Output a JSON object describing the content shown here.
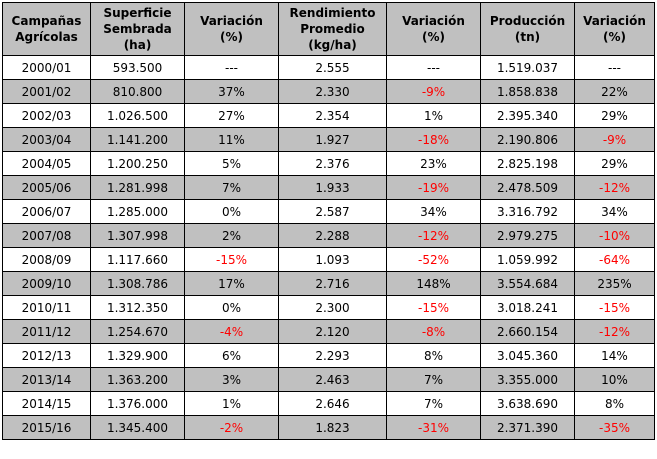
{
  "headers": [
    [
      "Campañas",
      "Agrícolas"
    ],
    [
      "Superficie",
      "Sembrada",
      "(ha)"
    ],
    [
      "Variación",
      "(%)"
    ],
    [
      "Rendimiento",
      "Promedio",
      "(kg/ha)"
    ],
    [
      "Variación",
      "(%)"
    ],
    [
      "Producción",
      "(tn)"
    ],
    [
      "Variación",
      "(%)"
    ]
  ],
  "rows": [
    [
      "2000/01",
      "593.500",
      "---",
      "2.555",
      "---",
      "1.519.037",
      "---"
    ],
    [
      "2001/02",
      "810.800",
      "37%",
      "2.330",
      "-9%",
      "1.858.838",
      "22%"
    ],
    [
      "2002/03",
      "1.026.500",
      "27%",
      "2.354",
      "1%",
      "2.395.340",
      "29%"
    ],
    [
      "2003/04",
      "1.141.200",
      "11%",
      "1.927",
      "-18%",
      "2.190.806",
      "-9%"
    ],
    [
      "2004/05",
      "1.200.250",
      "5%",
      "2.376",
      "23%",
      "2.825.198",
      "29%"
    ],
    [
      "2005/06",
      "1.281.998",
      "7%",
      "1.933",
      "-19%",
      "2.478.509",
      "-12%"
    ],
    [
      "2006/07",
      "1.285.000",
      "0%",
      "2.587",
      "34%",
      "3.316.792",
      "34%"
    ],
    [
      "2007/08",
      "1.307.998",
      "2%",
      "2.288",
      "-12%",
      "2.979.275",
      "-10%"
    ],
    [
      "2008/09",
      "1.117.660",
      "-15%",
      "1.093",
      "-52%",
      "1.059.992",
      "-64%"
    ],
    [
      "2009/10",
      "1.308.786",
      "17%",
      "2.716",
      "148%",
      "3.554.684",
      "235%"
    ],
    [
      "2010/11",
      "1.312.350",
      "0%",
      "2.300",
      "-15%",
      "3.018.241",
      "-15%"
    ],
    [
      "2011/12",
      "1.254.670",
      "-4%",
      "2.120",
      "-8%",
      "2.660.154",
      "-12%"
    ],
    [
      "2012/13",
      "1.329.900",
      "6%",
      "2.293",
      "8%",
      "3.045.360",
      "14%"
    ],
    [
      "2013/14",
      "1.363.200",
      "3%",
      "2.463",
      "7%",
      "3.355.000",
      "10%"
    ],
    [
      "2014/15",
      "1.376.000",
      "1%",
      "2.646",
      "7%",
      "3.638.690",
      "8%"
    ],
    [
      "2015/16",
      "1.345.400",
      "-2%",
      "1.823",
      "-31%",
      "2.371.390",
      "-35%"
    ]
  ],
  "colors": {
    "header_bg": "#c0c0c0",
    "shaded_row_bg": "#c0c0c0",
    "negative_text": "#ff0000",
    "text": "#000000"
  }
}
